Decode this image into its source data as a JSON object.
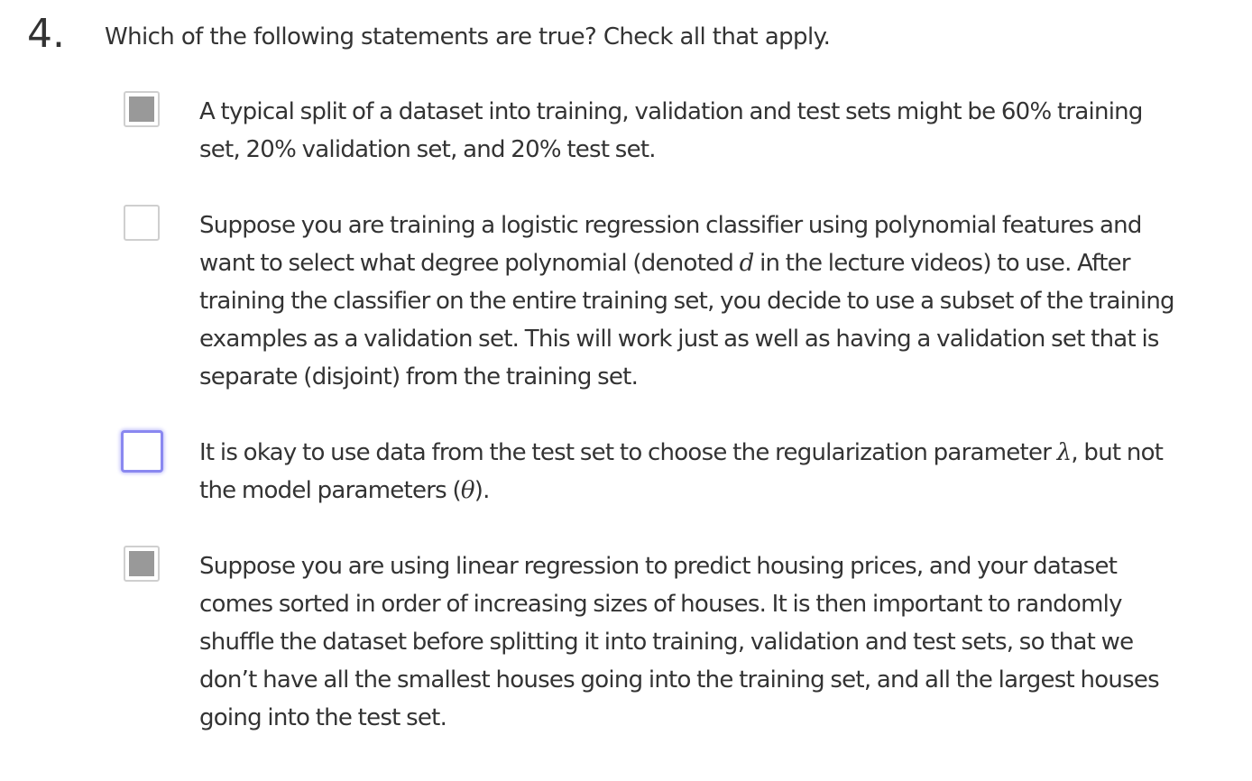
{
  "question": {
    "number": "4.",
    "prompt": "Which of the following statements are true? Check all that apply."
  },
  "options": [
    {
      "checked": true,
      "focused": false,
      "lines": [
        "A typical split of a dataset into training, validation and test sets might be 60% training",
        "set, 20% validation set, and 20% test set."
      ]
    },
    {
      "checked": false,
      "focused": false,
      "lines": [
        "Suppose you are training a logistic regression classifier using polynomial features and",
        [
          "want to select what degree polynomial (denoted ",
          "d",
          " in the lecture videos) to use. After"
        ],
        "training the classifier on the entire training set, you decide to use a subset of the training",
        "examples as a validation set. This will work just as well as having a validation set that is",
        "separate (disjoint) from the training set."
      ]
    },
    {
      "checked": false,
      "focused": true,
      "lines": [
        [
          "It is okay to use data from the test set to choose the regularization parameter ",
          "λ",
          ", but not"
        ],
        [
          "the model parameters (",
          "θ",
          ")."
        ]
      ]
    },
    {
      "checked": true,
      "focused": false,
      "lines": [
        "Suppose you are using linear regression to predict housing prices, and your dataset",
        "comes sorted in order of increasing sizes of houses. It is then important to randomly",
        "shuffle the dataset before splitting it into training, validation and test sets, so that we",
        "don’t have all the smallest houses going into the training set, and all the largest houses",
        "going into the test set."
      ]
    }
  ]
}
